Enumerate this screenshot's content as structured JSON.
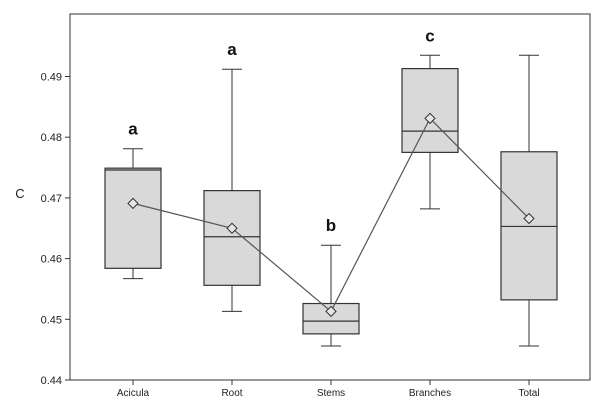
{
  "chart_data": {
    "type": "box",
    "ylabel": "C",
    "ylim": [
      0.44,
      0.5
    ],
    "yticks": [
      "0.44",
      "0.45",
      "0.46",
      "0.47",
      "0.48",
      "0.49"
    ],
    "categories": [
      "Acicula",
      "Root",
      "Stems",
      "Branches",
      "Total"
    ],
    "boxes": [
      {
        "category": "Acicula",
        "min": 0.4567,
        "q1": 0.4584,
        "median": 0.4746,
        "q3": 0.4749,
        "max": 0.4781,
        "mean": 0.4691,
        "letter": "a"
      },
      {
        "category": "Root",
        "min": 0.4513,
        "q1": 0.4556,
        "median": 0.4636,
        "q3": 0.4712,
        "max": 0.4912,
        "mean": 0.465,
        "letter": "a"
      },
      {
        "category": "Stems",
        "min": 0.4456,
        "q1": 0.4476,
        "median": 0.4497,
        "q3": 0.4526,
        "max": 0.4622,
        "mean": 0.4513,
        "letter": "b"
      },
      {
        "category": "Branches",
        "min": 0.4682,
        "q1": 0.4775,
        "median": 0.481,
        "q3": 0.4913,
        "max": 0.4935,
        "mean": 0.4831,
        "letter": "c"
      },
      {
        "category": "Total",
        "min": 0.4456,
        "q1": 0.4532,
        "median": 0.4653,
        "q3": 0.4776,
        "max": 0.4935,
        "mean": 0.4666,
        "letter": ""
      }
    ],
    "box_fill": "#d9d9d9",
    "mean_line_color": "#555555",
    "grid": false
  }
}
